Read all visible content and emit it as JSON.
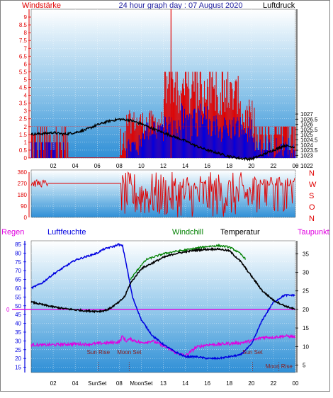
{
  "colors": {
    "red": "#e00000",
    "blue": "#0000e0",
    "green": "#008000",
    "magenta": "#e000e0",
    "navy": "#2020a0",
    "black": "#000000"
  },
  "header": {
    "left_label": "Windstärke",
    "title": "24 hour graph day : 07 August 2020",
    "right_label": "Luftdruck"
  },
  "chart_data": [
    {
      "id": "wind_pressure",
      "type": "line",
      "x_ticks": [
        "02",
        "04",
        "06",
        "08",
        "10",
        "12",
        "14",
        "16",
        "18",
        "20",
        "22",
        "00"
      ],
      "left_axis": {
        "name": "Windstärke",
        "ylim": [
          0,
          9.5
        ],
        "ticks": [
          "0",
          "0.5",
          "1",
          "1.5",
          "2",
          "2.5",
          "3",
          "3.5",
          "4",
          "4.5",
          "5",
          "5.5",
          "6",
          "6.5",
          "7",
          "7.5",
          "8",
          "8.5",
          "9"
        ]
      },
      "right_axis": {
        "name": "Luftdruck",
        "ylim": [
          1022.75,
          1037.15
        ],
        "ticks": [
          "1022",
          "1023",
          "1023.5",
          "1024",
          "1024.5",
          "1025",
          "1025.5",
          "1026",
          "1026.5",
          "1027"
        ]
      },
      "pressure": {
        "hours": [
          0,
          1,
          2,
          3,
          4,
          5,
          6,
          7,
          8,
          9,
          10,
          11,
          12,
          13,
          14,
          15,
          16,
          17,
          18,
          19,
          20,
          21,
          22,
          23,
          24
        ],
        "values": [
          1025.05,
          1025.1,
          1025.2,
          1025.05,
          1025.2,
          1025.5,
          1025.95,
          1026.3,
          1026.5,
          1026.4,
          1026.05,
          1025.6,
          1025.2,
          1024.8,
          1024.4,
          1023.9,
          1023.5,
          1023.2,
          1022.9,
          1022.7,
          1022.65,
          1023.05,
          1023.5,
          1023.95,
          1023.8
        ]
      },
      "wind_peak": {
        "hour": 12.7,
        "value": 9.5
      }
    },
    {
      "id": "wind_direction",
      "type": "line",
      "x_ticks": [
        "02",
        "04",
        "06",
        "08",
        "10",
        "12",
        "14",
        "16",
        "18",
        "20",
        "22",
        "00"
      ],
      "ylim": [
        0,
        360
      ],
      "ticks": [
        "0",
        "90",
        "180",
        "270",
        "360"
      ],
      "right_labels": [
        "N",
        "W",
        "S",
        "O",
        "N"
      ],
      "calm_value": 270
    },
    {
      "id": "humidity_temperature",
      "type": "line",
      "x_ticks": [
        "02",
        "04",
        "06",
        "08",
        "10",
        "12",
        "14",
        "16",
        "18",
        "20",
        "22",
        "00"
      ],
      "left_axis": {
        "name": "Luftfeuchte",
        "ylim": [
          12,
          87
        ],
        "ticks": [
          "15",
          "20",
          "25",
          "30",
          "35",
          "40",
          "45",
          "50",
          "55",
          "60",
          "65",
          "70",
          "75",
          "80",
          "85"
        ],
        "zero_label": "0"
      },
      "right_axis": {
        "name": "Temperatur",
        "ylim": [
          3,
          38.5
        ],
        "ticks": [
          "5",
          "10",
          "15",
          "20",
          "25",
          "30",
          "35"
        ]
      },
      "extra_legends": {
        "rain": "Regen",
        "windchill": "Windchill",
        "dewpoint": "Taupunkt"
      },
      "humidity": {
        "hours": [
          0,
          1,
          2,
          3,
          4,
          5,
          6,
          6.5,
          7,
          7.6,
          7.9,
          8.3,
          8.6,
          9.2,
          10,
          11,
          12,
          13,
          14,
          15,
          16,
          17,
          18,
          19,
          20,
          21,
          22,
          23,
          24
        ],
        "values": [
          60,
          63,
          68,
          72,
          76,
          78,
          80,
          82,
          83,
          84,
          85,
          84,
          75,
          55,
          42,
          33,
          28,
          24,
          21,
          21,
          20,
          20,
          21,
          22,
          28,
          42,
          52,
          56,
          56
        ]
      },
      "temperature": {
        "hours": [
          0,
          1,
          2,
          3,
          4,
          5,
          6,
          6.5,
          7,
          7.5,
          8,
          8.5,
          9,
          10,
          11,
          12,
          13,
          14,
          15,
          16,
          17,
          18,
          19,
          20,
          21,
          22,
          23,
          24
        ],
        "values": [
          22,
          21.3,
          20.7,
          20.2,
          19.9,
          19.6,
          19.5,
          19.6,
          20,
          21,
          22,
          23.5,
          27,
          31,
          32.5,
          34,
          35,
          35.5,
          36,
          36.2,
          36.3,
          35.8,
          33,
          29,
          25,
          22.5,
          21,
          20
        ]
      },
      "windchill": {
        "hours": [
          9,
          9.5,
          10,
          10.5,
          11,
          11.5,
          12,
          13,
          14,
          15,
          16,
          17,
          17.5,
          18,
          18.5,
          19,
          19.5
        ],
        "values": [
          28,
          30,
          32,
          33.5,
          34,
          34.5,
          35,
          35.6,
          36,
          36.5,
          37,
          37.2,
          37,
          36.8,
          36,
          35,
          33.5
        ]
      },
      "dewpoint": {
        "hours": [
          0,
          1,
          2,
          3,
          4,
          5,
          6,
          7,
          8,
          8.3,
          8.6,
          9,
          10,
          11,
          12,
          13,
          14,
          15,
          16,
          17,
          18,
          19,
          20,
          21,
          22,
          23,
          24
        ],
        "values": [
          10.5,
          10.4,
          10.5,
          10.6,
          10.7,
          10.6,
          10.8,
          11,
          11.2,
          12.8,
          11.5,
          12,
          11,
          11.5,
          10.2,
          8.5,
          7.5,
          9.8,
          10.5,
          10.6,
          10.8,
          11,
          11.5,
          12.5,
          12.5,
          12.8,
          12.6
        ]
      },
      "annotations": [
        {
          "text": "Sun Rise",
          "hour": 6.1,
          "pos": "top"
        },
        {
          "text": "Moon Set",
          "hour": 8.9,
          "pos": "top"
        },
        {
          "text": "Sun Set",
          "hour": 20.1,
          "pos": "top"
        },
        {
          "text": "Moon Rise",
          "hour": 22.5,
          "pos": "bottom"
        }
      ],
      "x_bottom_labels": [
        "02",
        "04",
        "SunSet",
        "08",
        "MoonSet",
        "13",
        "14",
        "16",
        "18",
        "20",
        "22",
        "00"
      ]
    }
  ]
}
